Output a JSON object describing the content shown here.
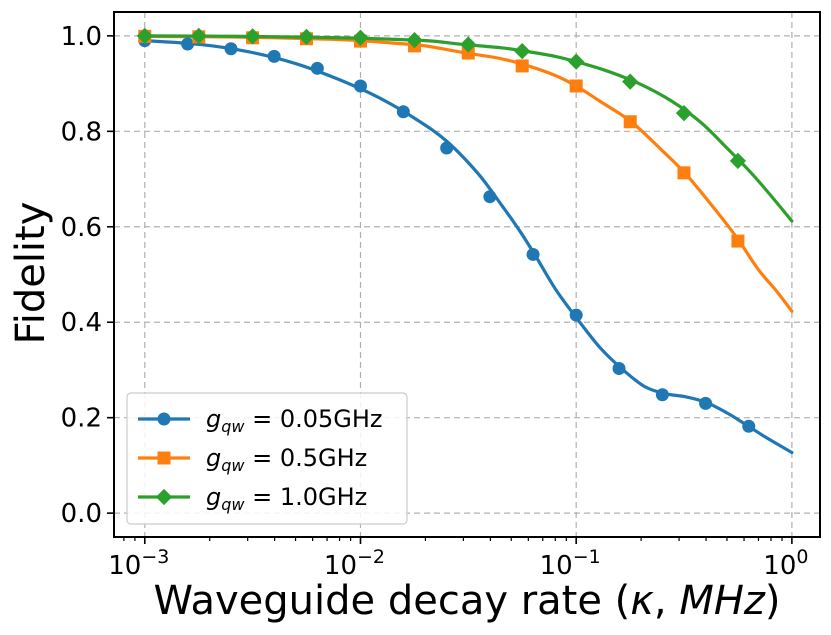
{
  "chart_data": {
    "type": "line",
    "x_scale": "log",
    "xlim": [
      0.00072,
      1.35
    ],
    "ylim": [
      -0.05,
      1.05
    ],
    "xlabel": "Waveguide decay rate (",
    "xlabel_kappa": "κ",
    "xlabel_sep": ", ",
    "xlabel_unit": "MHz",
    "xlabel_close": ")",
    "ylabel": "Fidelity",
    "x_ticks": [
      {
        "value": 0.001,
        "base": "10",
        "exp": "−3"
      },
      {
        "value": 0.01,
        "base": "10",
        "exp": "−2"
      },
      {
        "value": 0.1,
        "base": "10",
        "exp": "−1"
      },
      {
        "value": 1,
        "base": "10",
        "exp": "0"
      }
    ],
    "y_ticks": [
      {
        "value": 0.0,
        "label": "0.0"
      },
      {
        "value": 0.2,
        "label": "0.2"
      },
      {
        "value": 0.4,
        "label": "0.4"
      },
      {
        "value": 0.6,
        "label": "0.6"
      },
      {
        "value": 0.8,
        "label": "0.8"
      },
      {
        "value": 1.0,
        "label": "1.0"
      }
    ],
    "grid": true,
    "legend_position": "lower-left",
    "series": [
      {
        "name_sym": "g",
        "name_sub": "qw",
        "name_rest": " = 0.05GHz",
        "color": "#1f77b4",
        "marker": "circle",
        "curve": [
          [
            0.001,
            0.99
          ],
          [
            0.0018,
            0.982
          ],
          [
            0.003,
            0.967
          ],
          [
            0.005,
            0.942
          ],
          [
            0.008,
            0.908
          ],
          [
            0.012,
            0.872
          ],
          [
            0.018,
            0.826
          ],
          [
            0.025,
            0.78
          ],
          [
            0.035,
            0.712
          ],
          [
            0.045,
            0.646
          ],
          [
            0.055,
            0.59
          ],
          [
            0.065,
            0.538
          ],
          [
            0.08,
            0.47
          ],
          [
            0.1,
            0.41
          ],
          [
            0.13,
            0.345
          ],
          [
            0.17,
            0.295
          ],
          [
            0.21,
            0.264
          ],
          [
            0.26,
            0.25
          ],
          [
            0.32,
            0.244
          ],
          [
            0.4,
            0.232
          ],
          [
            0.5,
            0.21
          ],
          [
            0.6,
            0.188
          ],
          [
            0.75,
            0.16
          ],
          [
            1.0,
            0.127
          ]
        ],
        "points": [
          [
            0.001,
            0.99
          ],
          [
            0.00158,
            0.983
          ],
          [
            0.00251,
            0.973
          ],
          [
            0.00398,
            0.957
          ],
          [
            0.00631,
            0.932
          ],
          [
            0.01,
            0.895
          ],
          [
            0.0158,
            0.841
          ],
          [
            0.0251,
            0.765
          ],
          [
            0.0398,
            0.663
          ],
          [
            0.0631,
            0.542
          ],
          [
            0.1,
            0.415
          ],
          [
            0.158,
            0.303
          ],
          [
            0.251,
            0.248
          ],
          [
            0.398,
            0.23
          ],
          [
            0.631,
            0.182
          ]
        ]
      },
      {
        "name_sym": "g",
        "name_sub": "qw",
        "name_rest": " = 0.5GHz",
        "color": "#ff7f0e",
        "marker": "square",
        "curve": [
          [
            0.001,
            0.999
          ],
          [
            0.002,
            0.998
          ],
          [
            0.004,
            0.996
          ],
          [
            0.007,
            0.993
          ],
          [
            0.01,
            0.99
          ],
          [
            0.015,
            0.984
          ],
          [
            0.02,
            0.979
          ],
          [
            0.03,
            0.965
          ],
          [
            0.045,
            0.952
          ],
          [
            0.06,
            0.937
          ],
          [
            0.08,
            0.917
          ],
          [
            0.1,
            0.895
          ],
          [
            0.13,
            0.862
          ],
          [
            0.18,
            0.82
          ],
          [
            0.25,
            0.76
          ],
          [
            0.32,
            0.712
          ],
          [
            0.42,
            0.648
          ],
          [
            0.55,
            0.58
          ],
          [
            0.7,
            0.51
          ],
          [
            0.85,
            0.465
          ],
          [
            1.0,
            0.423
          ]
        ],
        "points": [
          [
            0.001,
            0.999
          ],
          [
            0.00178,
            0.998
          ],
          [
            0.00316,
            0.996
          ],
          [
            0.00562,
            0.994
          ],
          [
            0.01,
            0.989
          ],
          [
            0.0178,
            0.979
          ],
          [
            0.0316,
            0.964
          ],
          [
            0.0562,
            0.937
          ],
          [
            0.1,
            0.895
          ],
          [
            0.178,
            0.82
          ],
          [
            0.316,
            0.713
          ],
          [
            0.562,
            0.57
          ]
        ]
      },
      {
        "name_sym": "g",
        "name_sub": "qw",
        "name_rest": " = 1.0GHz",
        "color": "#2ca02c",
        "marker": "diamond",
        "curve": [
          [
            0.001,
            1.0
          ],
          [
            0.003,
            0.999
          ],
          [
            0.006,
            0.997
          ],
          [
            0.01,
            0.995
          ],
          [
            0.02,
            0.99
          ],
          [
            0.03,
            0.982
          ],
          [
            0.045,
            0.975
          ],
          [
            0.06,
            0.967
          ],
          [
            0.08,
            0.957
          ],
          [
            0.1,
            0.946
          ],
          [
            0.14,
            0.926
          ],
          [
            0.2,
            0.898
          ],
          [
            0.28,
            0.862
          ],
          [
            0.38,
            0.818
          ],
          [
            0.5,
            0.765
          ],
          [
            0.65,
            0.712
          ],
          [
            0.8,
            0.665
          ],
          [
            1.0,
            0.612
          ]
        ],
        "points": [
          [
            0.001,
            1.0
          ],
          [
            0.00178,
            1.0
          ],
          [
            0.00316,
            0.999
          ],
          [
            0.00562,
            0.998
          ],
          [
            0.01,
            0.996
          ],
          [
            0.0178,
            0.991
          ],
          [
            0.0316,
            0.982
          ],
          [
            0.0562,
            0.968
          ],
          [
            0.1,
            0.946
          ],
          [
            0.178,
            0.904
          ],
          [
            0.316,
            0.838
          ],
          [
            0.562,
            0.738
          ]
        ]
      }
    ]
  }
}
